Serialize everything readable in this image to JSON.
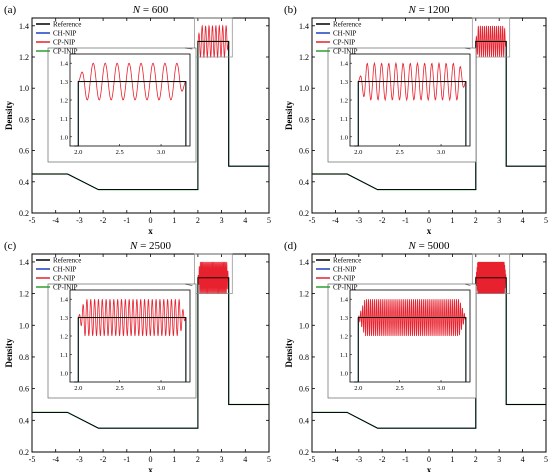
{
  "chart_data": [
    {
      "type": "line",
      "label": "(a)",
      "title_prefix": "N",
      "title_value": "= 600",
      "xlabel": "x",
      "ylabel": "Density",
      "xlim": [
        -5,
        5
      ],
      "ylim": [
        0.2,
        1.45
      ],
      "xticks": [
        -5,
        -4,
        -3,
        -2,
        -1,
        0,
        1,
        2,
        3,
        4,
        5
      ],
      "yticks": [
        0.2,
        0.4,
        0.6,
        0.8,
        1.0,
        1.2,
        1.4
      ],
      "ytick_labels": [
        "0.2",
        "0.4",
        "0.6",
        "0.8",
        "1.0",
        "1.2",
        "1.4"
      ],
      "legend": [
        "Reference",
        "CH-NIP",
        "CP-NIP",
        "CP-INIP"
      ],
      "legend_position": "top-left",
      "series_colors": [
        "#000000",
        "#1f3fbf",
        "#e8212e",
        "#2f9e2f"
      ],
      "reference": {
        "x": [
          -5,
          -3.5,
          -2.2,
          1.2,
          1.2,
          2.0,
          2.0,
          3.3,
          3.3,
          5
        ],
        "y": [
          0.45,
          0.45,
          0.35,
          0.35,
          0.35,
          0.35,
          1.3,
          1.3,
          0.5,
          0.5
        ]
      },
      "oscillation_amplitude": 0.1,
      "oscillation_periods": 9,
      "inset": {
        "xlim": [
          1.9,
          3.35
        ],
        "ylim": [
          0.95,
          1.45
        ],
        "xticks": [
          2.0,
          2.5,
          3.0
        ],
        "xtick_labels": [
          "2.0",
          "2.5",
          "3.0"
        ],
        "yticks": [
          1.0,
          1.1,
          1.2,
          1.3,
          1.4
        ],
        "ytick_labels": [
          "1.0",
          "1.1",
          "1.2",
          "1.3",
          "1.4"
        ]
      }
    },
    {
      "type": "line",
      "label": "(b)",
      "title_prefix": "N",
      "title_value": "= 1200",
      "xlabel": "x",
      "ylabel": "Density",
      "xlim": [
        -5,
        5
      ],
      "ylim": [
        0.2,
        1.45
      ],
      "xticks": [
        -5,
        -4,
        -3,
        -2,
        -1,
        0,
        1,
        2,
        3,
        4,
        5
      ],
      "yticks": [
        0.2,
        0.4,
        0.6,
        0.8,
        1.0,
        1.2,
        1.4
      ],
      "ytick_labels": [
        "0.2",
        "0.4",
        "0.6",
        "0.8",
        "1.0",
        "1.2",
        "1.4"
      ],
      "legend": [
        "Reference",
        "CH-NIP",
        "CP-NIP",
        "CP-INIP"
      ],
      "legend_position": "top-left",
      "series_colors": [
        "#000000",
        "#1f3fbf",
        "#e8212e",
        "#2f9e2f"
      ],
      "reference": {
        "x": [
          -5,
          -3.5,
          -2.2,
          1.2,
          1.2,
          2.0,
          2.0,
          3.3,
          3.3,
          5
        ],
        "y": [
          0.45,
          0.45,
          0.35,
          0.35,
          0.35,
          0.35,
          1.3,
          1.3,
          0.5,
          0.5
        ]
      },
      "oscillation_amplitude": 0.1,
      "oscillation_periods": 15,
      "inset": {
        "xlim": [
          1.9,
          3.35
        ],
        "ylim": [
          0.95,
          1.45
        ],
        "xticks": [
          2.0,
          2.5,
          3.0
        ],
        "xtick_labels": [
          "2.0",
          "2.5",
          "3.0"
        ],
        "yticks": [
          1.0,
          1.1,
          1.2,
          1.3,
          1.4
        ],
        "ytick_labels": [
          "1.0",
          "1.1",
          "1.2",
          "1.3",
          "1.4"
        ]
      }
    },
    {
      "type": "line",
      "label": "(c)",
      "title_prefix": "N",
      "title_value": "= 2500",
      "xlabel": "x",
      "ylabel": "Density",
      "xlim": [
        -5,
        5
      ],
      "ylim": [
        0.2,
        1.45
      ],
      "xticks": [
        -5,
        -4,
        -3,
        -2,
        -1,
        0,
        1,
        2,
        3,
        4,
        5
      ],
      "yticks": [
        0.2,
        0.4,
        0.6,
        0.8,
        1.0,
        1.2,
        1.4
      ],
      "ytick_labels": [
        "0.2",
        "0.4",
        "0.6",
        "0.8",
        "1.0",
        "1.2",
        "1.4"
      ],
      "legend": [
        "Reference",
        "CH-NIP",
        "CP-NIP",
        "CP-INIP"
      ],
      "legend_position": "top-left",
      "series_colors": [
        "#000000",
        "#1f3fbf",
        "#e8212e",
        "#2f9e2f"
      ],
      "reference": {
        "x": [
          -5,
          -3.5,
          -2.2,
          1.2,
          1.2,
          2.0,
          2.0,
          3.3,
          3.3,
          5
        ],
        "y": [
          0.45,
          0.45,
          0.35,
          0.35,
          0.35,
          0.35,
          1.3,
          1.3,
          0.5,
          0.5
        ]
      },
      "oscillation_amplitude": 0.1,
      "oscillation_periods": 28,
      "inset": {
        "xlim": [
          1.9,
          3.35
        ],
        "ylim": [
          0.95,
          1.45
        ],
        "xticks": [
          2.0,
          2.5,
          3.0
        ],
        "xtick_labels": [
          "2.0",
          "2.5",
          "3.0"
        ],
        "yticks": [
          1.0,
          1.1,
          1.2,
          1.3,
          1.4
        ],
        "ytick_labels": [
          "1.0",
          "1.1",
          "1.2",
          "1.3",
          "1.4"
        ]
      }
    },
    {
      "type": "line",
      "label": "(d)",
      "title_prefix": "N",
      "title_value": "= 5000",
      "xlabel": "x",
      "ylabel": "Density",
      "xlim": [
        -5,
        5
      ],
      "ylim": [
        0.2,
        1.45
      ],
      "xticks": [
        -5,
        -4,
        -3,
        -2,
        -1,
        0,
        1,
        2,
        3,
        4,
        5
      ],
      "yticks": [
        0.2,
        0.4,
        0.6,
        0.8,
        1.0,
        1.2,
        1.4
      ],
      "ytick_labels": [
        "0.2",
        "0.4",
        "0.6",
        "0.8",
        "1.0",
        "1.2",
        "1.4"
      ],
      "legend": [
        "Reference",
        "CH-NIP",
        "CP-NIP",
        "CP-INIP"
      ],
      "legend_position": "top-left",
      "series_colors": [
        "#000000",
        "#1f3fbf",
        "#e8212e",
        "#2f9e2f"
      ],
      "reference": {
        "x": [
          -5,
          -3.5,
          -2.2,
          1.2,
          1.2,
          2.0,
          2.0,
          3.3,
          3.3,
          5
        ],
        "y": [
          0.45,
          0.45,
          0.35,
          0.35,
          0.35,
          0.35,
          1.3,
          1.3,
          0.5,
          0.5
        ]
      },
      "oscillation_amplitude": 0.1,
      "oscillation_periods": 55,
      "inset": {
        "xlim": [
          1.9,
          3.35
        ],
        "ylim": [
          0.95,
          1.45
        ],
        "xticks": [
          2.0,
          2.5,
          3.0
        ],
        "xtick_labels": [
          "2.0",
          "2.5",
          "3.0"
        ],
        "yticks": [
          1.0,
          1.1,
          1.2,
          1.3,
          1.4
        ],
        "ytick_labels": [
          "1.0",
          "1.1",
          "1.2",
          "1.3",
          "1.4"
        ]
      }
    }
  ]
}
